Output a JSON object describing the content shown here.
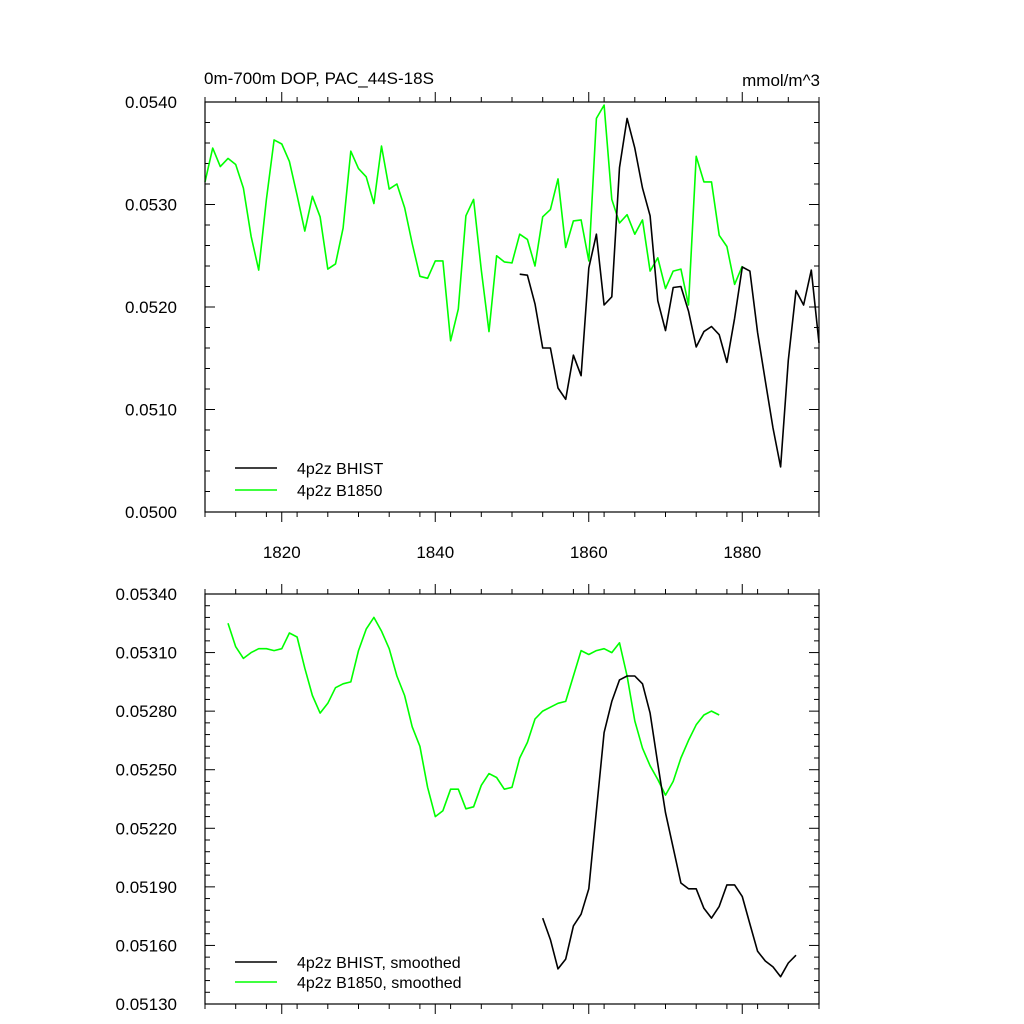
{
  "chart_data": [
    {
      "type": "line",
      "title": "0m-700m DOP, PAC_44S-18S",
      "units": "mmol/m^3",
      "xlim": [
        1810,
        1890
      ],
      "ylim": [
        0.05,
        0.054
      ],
      "x_ticks": [
        1820,
        1840,
        1860,
        1880
      ],
      "y_ticks": [
        0.05,
        0.051,
        0.052,
        0.053,
        0.054
      ],
      "y_tick_labels": [
        "0.0500",
        "0.0510",
        "0.0520",
        "0.0530",
        "0.0540"
      ],
      "legend": "bottom-left",
      "series": [
        {
          "name": "4p2z BHIST",
          "color": "#000000",
          "x": [
            1851,
            1852,
            1853,
            1854,
            1855,
            1856,
            1857,
            1858,
            1859,
            1860,
            1861,
            1862,
            1863,
            1864,
            1865,
            1866,
            1867,
            1868,
            1869,
            1870,
            1871,
            1872,
            1873,
            1874,
            1875,
            1876,
            1877,
            1878,
            1879,
            1880,
            1881,
            1882,
            1883,
            1884,
            1885,
            1886,
            1887,
            1888,
            1889,
            1890
          ],
          "y": [
            0.05232,
            0.05231,
            0.05203,
            0.0516,
            0.0516,
            0.05121,
            0.0511,
            0.05153,
            0.05133,
            0.05238,
            0.05271,
            0.05202,
            0.0521,
            0.05336,
            0.05384,
            0.05355,
            0.05316,
            0.05289,
            0.05206,
            0.05177,
            0.05219,
            0.0522,
            0.05196,
            0.05161,
            0.05176,
            0.05181,
            0.05173,
            0.05146,
            0.05189,
            0.05239,
            0.05235,
            0.05175,
            0.05128,
            0.05082,
            0.05044,
            0.05148,
            0.05216,
            0.05202,
            0.05236,
            0.05165
          ]
        },
        {
          "name": "4p2z B1850",
          "color": "#00ff00",
          "x": [
            1810,
            1811,
            1812,
            1813,
            1814,
            1815,
            1816,
            1817,
            1818,
            1819,
            1820,
            1821,
            1822,
            1823,
            1824,
            1825,
            1826,
            1827,
            1828,
            1829,
            1830,
            1831,
            1832,
            1833,
            1834,
            1835,
            1836,
            1837,
            1838,
            1839,
            1840,
            1841,
            1842,
            1843,
            1844,
            1845,
            1846,
            1847,
            1848,
            1849,
            1850,
            1851,
            1852,
            1853,
            1854,
            1855,
            1856,
            1857,
            1858,
            1859,
            1860,
            1861,
            1862,
            1863,
            1864,
            1865,
            1866,
            1867,
            1868,
            1869,
            1870,
            1871,
            1872,
            1873,
            1874,
            1875,
            1876,
            1877,
            1878,
            1879,
            1880
          ],
          "y": [
            0.05322,
            0.05355,
            0.05337,
            0.05345,
            0.05339,
            0.05316,
            0.05269,
            0.05236,
            0.05305,
            0.05363,
            0.05359,
            0.05342,
            0.05309,
            0.05274,
            0.05308,
            0.05288,
            0.05237,
            0.05242,
            0.05277,
            0.05352,
            0.05335,
            0.05327,
            0.05301,
            0.05357,
            0.05315,
            0.0532,
            0.05297,
            0.05262,
            0.0523,
            0.05228,
            0.05245,
            0.05245,
            0.05167,
            0.05198,
            0.05289,
            0.05305,
            0.05236,
            0.05176,
            0.0525,
            0.05244,
            0.05243,
            0.05271,
            0.05266,
            0.0524,
            0.05288,
            0.05295,
            0.05325,
            0.05258,
            0.05284,
            0.05285,
            0.05245,
            0.05384,
            0.05397,
            0.05305,
            0.05282,
            0.0529,
            0.05271,
            0.05285,
            0.05235,
            0.05248,
            0.05218,
            0.05235,
            0.05237,
            0.05202,
            0.05347,
            0.05322,
            0.05322,
            0.0527,
            0.05259,
            0.05222,
            0.0524
          ]
        }
      ],
      "x_tick_labels": [
        "1820",
        "1840",
        "1860",
        "1880"
      ]
    },
    {
      "type": "line",
      "title": "",
      "xlim": [
        1810,
        1890
      ],
      "ylim": [
        0.0513,
        0.0534
      ],
      "x_ticks": [
        1820,
        1840,
        1860,
        1880
      ],
      "y_ticks": [
        0.0513,
        0.0516,
        0.0519,
        0.0522,
        0.0525,
        0.0528,
        0.0531,
        0.0534
      ],
      "y_tick_labels": [
        "0.05130",
        "0.05160",
        "0.05190",
        "0.05220",
        "0.05250",
        "0.05280",
        "0.05310",
        "0.05340"
      ],
      "legend": "bottom-left",
      "series": [
        {
          "name": "4p2z BHIST, smoothed",
          "color": "#000000",
          "x": [
            1854,
            1855,
            1856,
            1857,
            1858,
            1859,
            1860,
            1861,
            1862,
            1863,
            1864,
            1865,
            1866,
            1867,
            1868,
            1869,
            1870,
            1871,
            1872,
            1873,
            1874,
            1875,
            1876,
            1877,
            1878,
            1879,
            1880,
            1881,
            1882,
            1883,
            1884,
            1885,
            1886,
            1887
          ],
          "y": [
            0.05174,
            0.05163,
            0.05148,
            0.05153,
            0.0517,
            0.05176,
            0.05189,
            0.05229,
            0.05269,
            0.05285,
            0.05296,
            0.05298,
            0.05298,
            0.05294,
            0.05279,
            0.05253,
            0.05228,
            0.0521,
            0.05192,
            0.05189,
            0.05189,
            0.05179,
            0.05174,
            0.0518,
            0.05191,
            0.05191,
            0.05185,
            0.05171,
            0.05157,
            0.05152,
            0.05149,
            0.05144,
            0.05151,
            0.05155
          ]
        },
        {
          "name": "4p2z B1850, smoothed",
          "color": "#00ff00",
          "x": [
            1813,
            1814,
            1815,
            1816,
            1817,
            1818,
            1819,
            1820,
            1821,
            1822,
            1823,
            1824,
            1825,
            1826,
            1827,
            1828,
            1829,
            1830,
            1831,
            1832,
            1833,
            1834,
            1835,
            1836,
            1837,
            1838,
            1839,
            1840,
            1841,
            1842,
            1843,
            1844,
            1845,
            1846,
            1847,
            1848,
            1849,
            1850,
            1851,
            1852,
            1853,
            1854,
            1855,
            1856,
            1857,
            1858,
            1859,
            1860,
            1861,
            1862,
            1863,
            1864,
            1865,
            1866,
            1867,
            1868,
            1869,
            1870,
            1871,
            1872,
            1873,
            1874,
            1875,
            1876,
            1877
          ],
          "y": [
            0.05325,
            0.05313,
            0.05307,
            0.0531,
            0.05312,
            0.05312,
            0.05311,
            0.05312,
            0.0532,
            0.05318,
            0.05302,
            0.05288,
            0.05279,
            0.05284,
            0.05292,
            0.05294,
            0.05295,
            0.05311,
            0.05322,
            0.05328,
            0.05321,
            0.05312,
            0.05298,
            0.05288,
            0.05272,
            0.05262,
            0.05241,
            0.05226,
            0.05229,
            0.0524,
            0.0524,
            0.0523,
            0.05231,
            0.05242,
            0.05248,
            0.05246,
            0.0524,
            0.05241,
            0.05256,
            0.05264,
            0.05276,
            0.0528,
            0.05282,
            0.05284,
            0.05285,
            0.05298,
            0.05311,
            0.05309,
            0.05311,
            0.05312,
            0.0531,
            0.05315,
            0.05298,
            0.05275,
            0.05261,
            0.05252,
            0.05245,
            0.05237,
            0.05244,
            0.05256,
            0.05265,
            0.05273,
            0.05278,
            0.0528,
            0.05278
          ]
        }
      ],
      "x_tick_labels": []
    }
  ]
}
